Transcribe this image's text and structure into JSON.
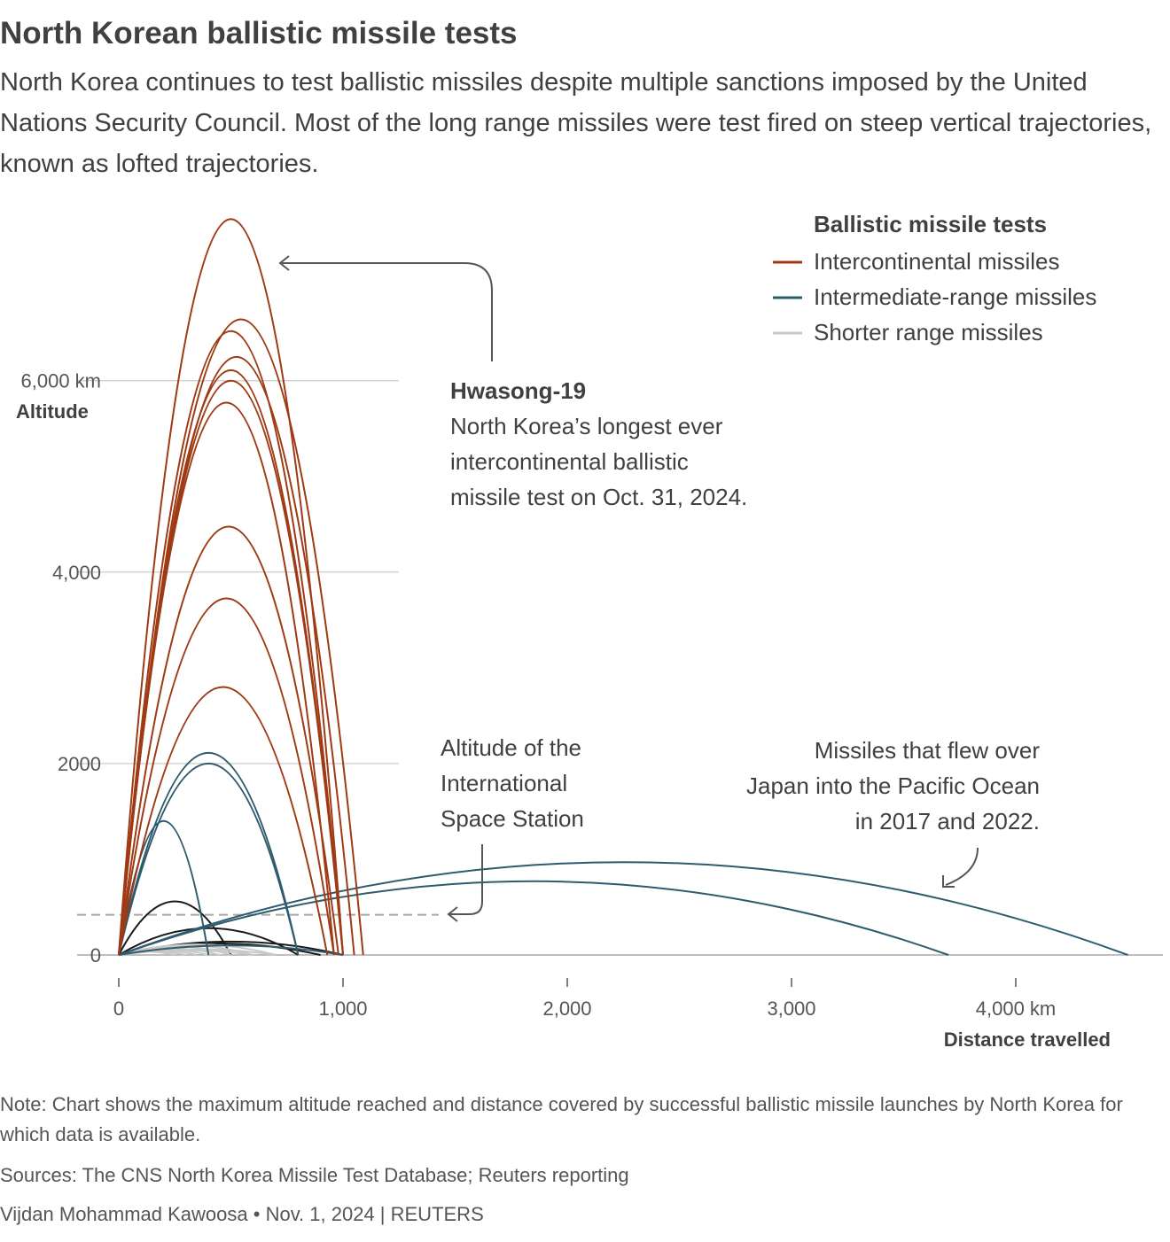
{
  "title": "North Korean ballistic missile tests",
  "subtitle": "North Korea continues to test ballistic missiles despite multiple sanctions imposed by the United Nations Security Council. Most of the long range missiles were test fired on steep vertical trajectories, known as lofted trajectories.",
  "legend": {
    "title": "Ballistic missile tests",
    "items": [
      {
        "label": "Intercontinental missiles",
        "color": "#9e3a14"
      },
      {
        "label": "Intermediate-range missiles",
        "color": "#2f5b6e"
      },
      {
        "label": "Shorter range missiles",
        "color": "#c8c8c8"
      }
    ]
  },
  "annotations": {
    "hwasong": {
      "title": "Hwasong-19",
      "lines": [
        "North Korea’s longest ever",
        "intercontinental ballistic",
        "missile test on Oct. 31, 2024."
      ]
    },
    "iss": {
      "lines": [
        "Altitude of the",
        "International",
        "Space Station"
      ]
    },
    "japan": {
      "lines": [
        "Missiles that flew over",
        "Japan into the Pacific Ocean",
        "in 2017 and 2022."
      ]
    }
  },
  "footer": {
    "note": "Note: Chart shows the maximum altitude reached and distance covered by successful ballistic missile launches by North Korea for which data is available.",
    "sources": "Sources: The CNS North Korea Missile Test Database; Reuters reporting",
    "credit": "Vijdan Mohammad Kawoosa • Nov. 1, 2024 | REUTERS"
  },
  "chart_data": {
    "type": "line",
    "xlabel": "Distance travelled",
    "ylabel": "Altitude",
    "xlim": [
      0,
      4600
    ],
    "ylim": [
      0,
      7700
    ],
    "x_ticks": [
      {
        "value": 0,
        "label": "0"
      },
      {
        "value": 1000,
        "label": "1,000"
      },
      {
        "value": 2000,
        "label": "2,000"
      },
      {
        "value": 3000,
        "label": "3,000"
      },
      {
        "value": 4000,
        "label": "4,000 km"
      }
    ],
    "y_ticks": [
      {
        "value": 0,
        "label": "0"
      },
      {
        "value": 2000,
        "label": "2000"
      },
      {
        "value": 4000,
        "label": "4,000"
      },
      {
        "value": 6000,
        "label": "6,000 km"
      }
    ],
    "iss_altitude": 420,
    "colors": {
      "icbm": "#9e3a14",
      "irbm": "#2f5b6e",
      "short": "#c8c8c8",
      "short_dark": "#1a1a1a",
      "grid": "#d4d4d4",
      "iss": "#a8a8a8"
    },
    "series": [
      {
        "name": "Intercontinental missiles",
        "trajectories": [
          {
            "distance": 1000,
            "apogee": 7687
          },
          {
            "distance": 1090,
            "apogee": 6640
          },
          {
            "distance": 1000,
            "apogee": 6518
          },
          {
            "distance": 1050,
            "apogee": 6248
          },
          {
            "distance": 1000,
            "apogee": 6110
          },
          {
            "distance": 1000,
            "apogee": 6000
          },
          {
            "distance": 960,
            "apogee": 5770
          },
          {
            "distance": 980,
            "apogee": 4475
          },
          {
            "distance": 960,
            "apogee": 3725
          },
          {
            "distance": 930,
            "apogee": 2800
          }
        ]
      },
      {
        "name": "Intermediate-range missiles",
        "trajectories": [
          {
            "distance": 800,
            "apogee": 2111
          },
          {
            "distance": 800,
            "apogee": 2000
          },
          {
            "distance": 400,
            "apogee": 1400
          },
          {
            "distance": 3700,
            "apogee": 770
          },
          {
            "distance": 4500,
            "apogee": 970
          },
          {
            "distance": 1000,
            "apogee": 100
          }
        ]
      },
      {
        "name": "Shorter range missiles",
        "trajectories": [
          {
            "distance": 500,
            "apogee": 560
          },
          {
            "distance": 800,
            "apogee": 280
          },
          {
            "distance": 1000,
            "apogee": 140
          },
          {
            "distance": 900,
            "apogee": 120
          },
          {
            "distance": 700,
            "apogee": 110
          },
          {
            "distance": 600,
            "apogee": 100
          },
          {
            "distance": 500,
            "apogee": 90
          },
          {
            "distance": 450,
            "apogee": 70
          },
          {
            "distance": 400,
            "apogee": 60
          },
          {
            "distance": 350,
            "apogee": 50
          },
          {
            "distance": 300,
            "apogee": 40
          },
          {
            "distance": 250,
            "apogee": 35
          },
          {
            "distance": 600,
            "apogee": 50
          },
          {
            "distance": 700,
            "apogee": 60
          }
        ]
      }
    ]
  }
}
